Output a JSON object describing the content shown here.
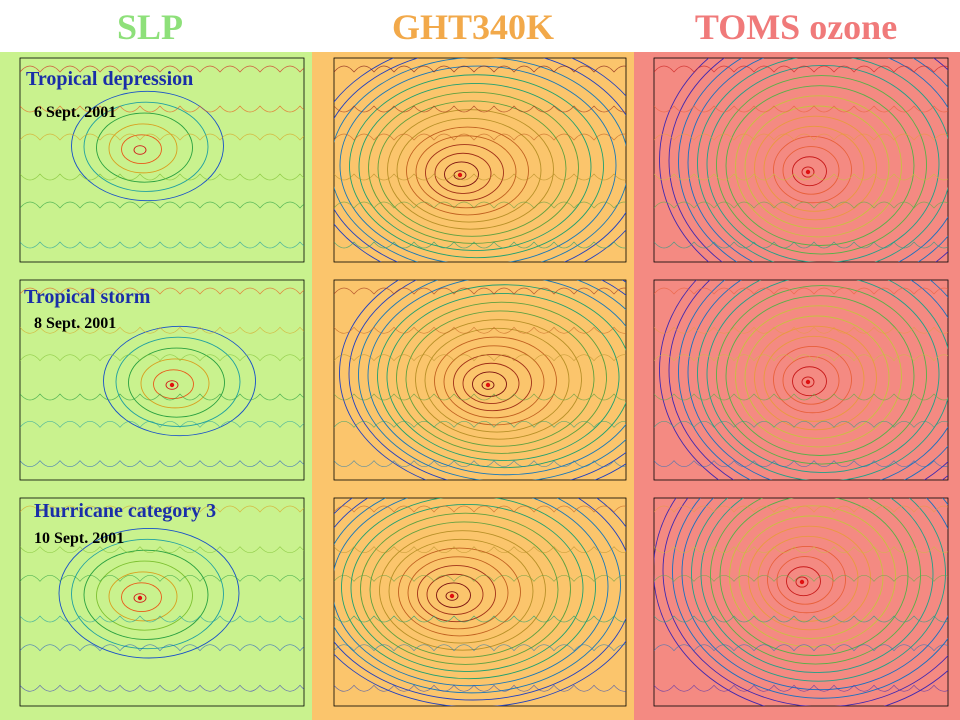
{
  "columns": {
    "slp": "SLP",
    "ght": "GHT340K",
    "toms": "TOMS ozone"
  },
  "rows": [
    {
      "stage": "Tropical depression",
      "date": "6 Sept. 2001"
    },
    {
      "stage": "Tropical storm",
      "date": "8 Sept. 2001"
    },
    {
      "stage": "Hurricane category 3",
      "date": "10 Sept. 2001"
    }
  ],
  "colors": {
    "slp_bg": "#c9f28e",
    "ght_bg": "#fbc56c",
    "toms_bg": "#f48a82"
  }
}
